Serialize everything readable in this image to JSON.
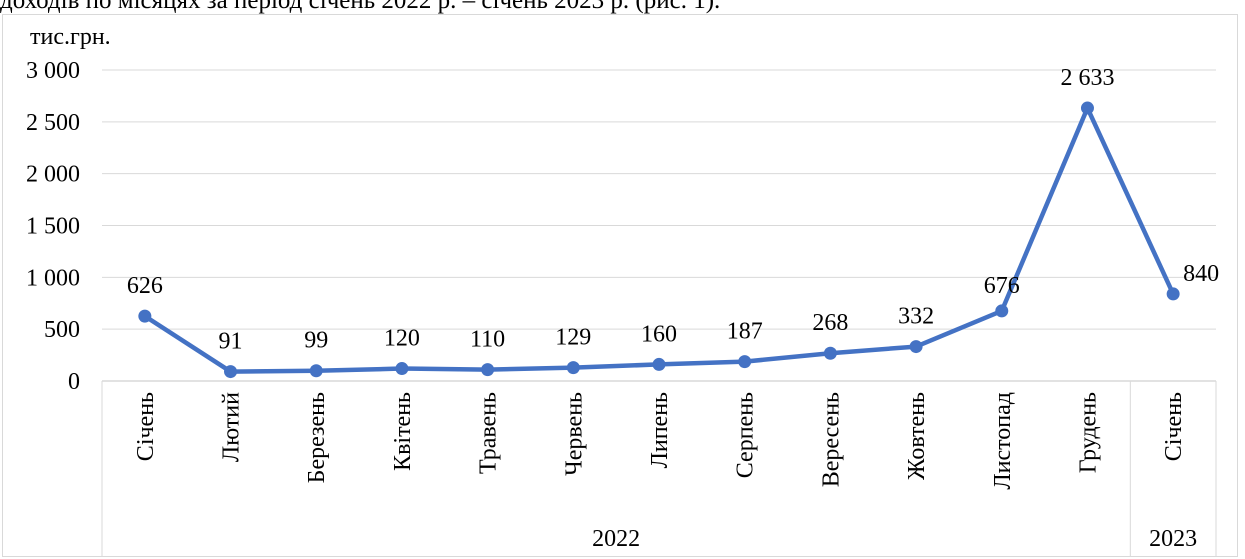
{
  "caption": "доходів по місяцях за період січень 2022 р. – січень 2023 р. (рис. 1).",
  "chart_data": {
    "type": "line",
    "ylabel": "тис.грн.",
    "ylim": [
      0,
      3000
    ],
    "ytick_values": [
      0,
      500,
      1000,
      1500,
      2000,
      2500,
      3000
    ],
    "ytick_labels": [
      "0",
      "500",
      "1 000",
      "1 500",
      "2 000",
      "2 500",
      "3 000"
    ],
    "categories": [
      "Січень",
      "Лютий",
      "Березень",
      "Квітень",
      "Травень",
      "Червень",
      "Липень",
      "Серпень",
      "Вересень",
      "Жовтень",
      "Листопад",
      "Грудень",
      "Січень"
    ],
    "values": [
      626,
      91,
      99,
      120,
      110,
      129,
      160,
      187,
      268,
      332,
      676,
      2633,
      840
    ],
    "data_labels": [
      "626",
      "91",
      "99",
      "120",
      "110",
      "129",
      "160",
      "187",
      "268",
      "332",
      "676",
      "2 633",
      "840"
    ],
    "groups": [
      {
        "label": "2022",
        "count": 12
      },
      {
        "label": "2023",
        "count": 1
      }
    ],
    "grid": true,
    "line_color": "#4472c4",
    "grid_color": "#d9d9d9"
  }
}
